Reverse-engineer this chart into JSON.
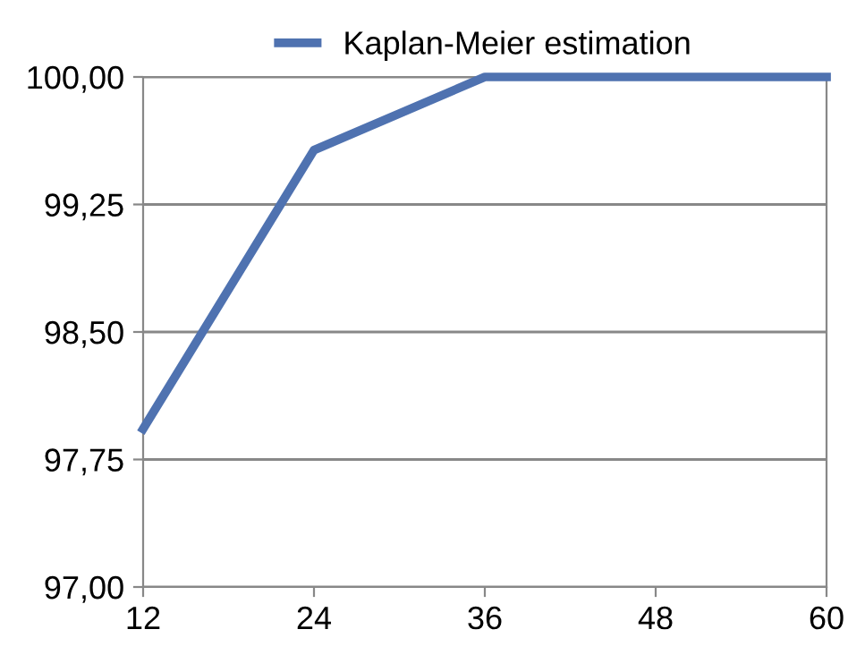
{
  "chart_data": {
    "type": "line",
    "x": [
      12,
      24,
      36,
      48,
      60
    ],
    "series": [
      {
        "name": "Kaplan-Meier estimation",
        "color": "#4f72b0",
        "values": [
          97.93,
          99.57,
          100,
          100,
          100
        ]
      }
    ],
    "xlim": [
      12,
      60
    ],
    "xticks": [
      12,
      24,
      36,
      48,
      60
    ],
    "ylim": [
      97,
      100
    ],
    "yticks": [
      {
        "value": 97,
        "label": "97,00"
      },
      {
        "value": 97.75,
        "label": "97,75"
      },
      {
        "value": 98.5,
        "label": "98,50"
      },
      {
        "value": 99.25,
        "label": "99,25"
      },
      {
        "value": 100,
        "label": "100,00"
      }
    ],
    "grid": "y",
    "legend": "top",
    "marker": "none",
    "line_style": "solid"
  }
}
